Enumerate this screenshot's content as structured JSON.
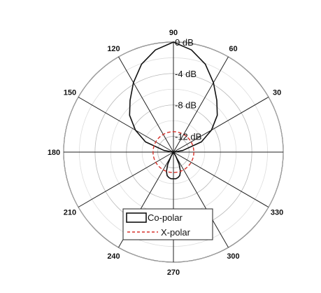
{
  "chart_data": {
    "type": "polar-line",
    "title": "",
    "angle_unit": "deg",
    "angle_ticks": [
      0,
      30,
      60,
      90,
      120,
      150,
      180,
      210,
      240,
      270,
      300,
      330
    ],
    "angle_tick_labels": [
      "",
      "30",
      "60",
      "90",
      "120",
      "150",
      "180",
      "210",
      "240",
      "270",
      "300",
      "330"
    ],
    "radial_range_db": [
      -14,
      0
    ],
    "radial_ticks_db": [
      0,
      -4,
      -8,
      -12
    ],
    "radial_tick_labels": [
      "0 dB",
      "-4 dB",
      "-8 dB",
      "-12 dB"
    ],
    "minor_ring_step_db": 2,
    "grid": true,
    "legend_position": "bottom-center",
    "series": [
      {
        "name": "Co-polar",
        "color": "#111111",
        "style": "solid",
        "angles": [
          0,
          10,
          20,
          30,
          40,
          50,
          60,
          70,
          80,
          90,
          100,
          110,
          120,
          130,
          140,
          150,
          160,
          170,
          180,
          190,
          200,
          210,
          220,
          230,
          240,
          245,
          250,
          255,
          260,
          265,
          270,
          275,
          280,
          285,
          290,
          295,
          300,
          310,
          320,
          330,
          340,
          350,
          360
        ],
        "values": [
          -14,
          -12.8,
          -10.2,
          -8.4,
          -6.7,
          -5.4,
          -3.8,
          -2.1,
          -0.8,
          0,
          -0.8,
          -2.1,
          -3.8,
          -5.4,
          -6.7,
          -8.4,
          -10.2,
          -12.8,
          -14,
          -14,
          -14,
          -14,
          -14,
          -14,
          -13.4,
          -12.3,
          -11.4,
          -10.9,
          -10.7,
          -10.6,
          -10.6,
          -10.6,
          -10.7,
          -10.9,
          -11.4,
          -12.3,
          -13.4,
          -14,
          -14,
          -14,
          -14,
          -14,
          -14
        ]
      },
      {
        "name": "X-polar",
        "color": "#d7312a",
        "style": "dashed",
        "angles": [
          0,
          30,
          60,
          90,
          120,
          150,
          180,
          210,
          240,
          270,
          300,
          330,
          360
        ],
        "values": [
          -11.4,
          -11.4,
          -11.4,
          -11.4,
          -11.4,
          -11.4,
          -11.4,
          -11.4,
          -11.4,
          -11.4,
          -11.4,
          -11.4,
          -11.4
        ]
      }
    ]
  }
}
